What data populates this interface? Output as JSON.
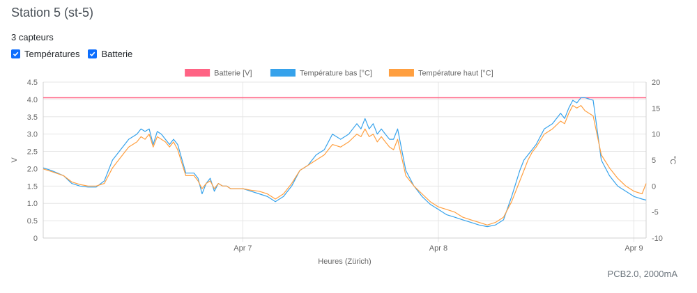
{
  "header": {
    "title": "Station 5 (st-5)",
    "subtitle": "3 capteurs"
  },
  "filters": [
    {
      "label": "Températures",
      "checked": true
    },
    {
      "label": "Batterie",
      "checked": true
    }
  ],
  "footnote": "PCB2.0, 2000mA",
  "colors": {
    "battery": "#ff6384",
    "temp_low": "#36a2eb",
    "temp_high": "#ff9f40",
    "grid": "#e6e6e6"
  },
  "chart_data": {
    "type": "line",
    "xlabel": "Heures (Zürich)",
    "ylabel_left": "V",
    "ylabel_right": "°C",
    "x_ticks": [
      "Apr 7",
      "Apr 8",
      "Apr 9"
    ],
    "y_left": {
      "min": 0,
      "max": 4.5,
      "ticks": [
        0,
        0.5,
        1.0,
        1.5,
        2.0,
        2.5,
        3.0,
        3.5,
        4.0,
        4.5
      ]
    },
    "y_right": {
      "min": -10,
      "max": 20,
      "ticks": [
        -10,
        -5,
        0,
        5,
        10,
        15,
        20
      ]
    },
    "legend_position": "top",
    "grid": true,
    "x_hours_range": [
      -24.5,
      49.5
    ],
    "series": [
      {
        "name": "Batterie [V]",
        "axis": "left",
        "color_key": "battery",
        "x": [
          -24.5,
          49.5
        ],
        "y": [
          4.05,
          4.05
        ]
      },
      {
        "name": "Température bas [°C]",
        "axis": "right",
        "color_key": "temp_low",
        "x": [
          -24.5,
          -23.5,
          -22.0,
          -21.0,
          -20.0,
          -19.0,
          -18.0,
          -17.0,
          -16.0,
          -15.0,
          -14.0,
          -13.0,
          -12.5,
          -12.0,
          -11.5,
          -11.0,
          -10.5,
          -10.0,
          -9.5,
          -9.0,
          -8.5,
          -8.0,
          -7.0,
          -6.0,
          -5.5,
          -5.0,
          -4.5,
          -4.0,
          -3.5,
          -3.0,
          -2.5,
          -2.0,
          -1.5,
          -1.0,
          0.0,
          1.0,
          2.0,
          3.0,
          4.0,
          5.0,
          6.0,
          7.0,
          8.0,
          9.0,
          10.0,
          11.0,
          12.0,
          13.0,
          14.0,
          14.5,
          15.0,
          15.5,
          16.0,
          16.5,
          17.0,
          17.5,
          18.0,
          18.5,
          19.0,
          20.0,
          21.0,
          22.0,
          23.0,
          24.0,
          25.0,
          26.0,
          27.0,
          28.0,
          29.0,
          30.0,
          31.0,
          32.0,
          33.0,
          34.0,
          34.5,
          35.0,
          35.5,
          36.0,
          37.0,
          38.0,
          39.0,
          39.5,
          40.0,
          40.5,
          41.0,
          41.5,
          42.0,
          43.0,
          44.0,
          45.0,
          46.0,
          47.0,
          48.0,
          49.0,
          49.5
        ],
        "y": [
          3.5,
          3.0,
          2.0,
          0.5,
          0.0,
          -0.2,
          -0.2,
          1.0,
          5.0,
          7.0,
          9.0,
          10.0,
          11.0,
          10.5,
          11.0,
          8.0,
          10.5,
          10.0,
          9.0,
          8.0,
          9.0,
          8.0,
          2.5,
          2.5,
          1.5,
          -1.5,
          0.5,
          1.5,
          -1.0,
          0.5,
          0.0,
          0.0,
          -0.5,
          -0.5,
          -0.5,
          -1.0,
          -1.5,
          -2.0,
          -3.0,
          -2.0,
          0.0,
          3.0,
          4.0,
          6.0,
          7.0,
          10.0,
          9.0,
          10.0,
          12.0,
          11.0,
          13.0,
          11.0,
          12.0,
          10.0,
          11.0,
          10.0,
          9.0,
          9.0,
          11.0,
          3.0,
          0.0,
          -2.0,
          -3.5,
          -4.5,
          -5.5,
          -6.0,
          -6.5,
          -7.0,
          -7.5,
          -7.8,
          -7.5,
          -6.5,
          -2.0,
          3.0,
          5.0,
          6.0,
          7.0,
          8.0,
          11.0,
          12.0,
          14.0,
          13.0,
          15.0,
          16.5,
          16.0,
          17.0,
          17.0,
          16.5,
          5.0,
          2.0,
          0.0,
          -1.0,
          -2.0,
          -2.5,
          -2.7
        ]
      },
      {
        "name": "Température haut [°C]",
        "axis": "right",
        "color_key": "temp_high",
        "x": [
          -24.5,
          -23.5,
          -22.0,
          -21.0,
          -20.0,
          -19.0,
          -18.0,
          -17.0,
          -16.0,
          -15.0,
          -14.0,
          -13.0,
          -12.5,
          -12.0,
          -11.5,
          -11.0,
          -10.5,
          -10.0,
          -9.5,
          -9.0,
          -8.5,
          -8.0,
          -7.0,
          -6.0,
          -5.5,
          -5.0,
          -4.5,
          -4.0,
          -3.5,
          -3.0,
          -2.5,
          -2.0,
          -1.5,
          -1.0,
          0.0,
          1.0,
          2.0,
          3.0,
          4.0,
          5.0,
          6.0,
          7.0,
          8.0,
          9.0,
          10.0,
          11.0,
          12.0,
          13.0,
          14.0,
          14.5,
          15.0,
          15.5,
          16.0,
          16.5,
          17.0,
          17.5,
          18.0,
          18.5,
          19.0,
          20.0,
          21.0,
          22.0,
          23.0,
          24.0,
          25.0,
          26.0,
          27.0,
          28.0,
          29.0,
          30.0,
          31.0,
          32.0,
          33.0,
          34.0,
          34.5,
          35.0,
          35.5,
          36.0,
          37.0,
          38.0,
          39.0,
          39.5,
          40.0,
          40.5,
          41.0,
          41.5,
          42.0,
          43.0,
          44.0,
          45.0,
          46.0,
          47.0,
          48.0,
          49.0,
          49.5
        ],
        "y": [
          3.3,
          2.8,
          2.0,
          0.8,
          0.3,
          0.0,
          0.0,
          0.5,
          3.5,
          5.5,
          7.5,
          8.5,
          9.5,
          9.0,
          10.0,
          7.5,
          9.5,
          9.0,
          8.5,
          7.5,
          8.5,
          7.0,
          2.0,
          2.0,
          1.0,
          -0.5,
          0.5,
          1.0,
          -0.5,
          0.5,
          0.0,
          0.0,
          -0.5,
          -0.5,
          -0.5,
          -0.8,
          -1.0,
          -1.5,
          -2.5,
          -1.5,
          0.5,
          3.0,
          4.0,
          5.0,
          6.0,
          8.0,
          7.5,
          8.5,
          10.0,
          9.5,
          11.0,
          9.5,
          10.0,
          8.5,
          9.5,
          8.5,
          7.5,
          7.0,
          9.0,
          2.0,
          0.0,
          -1.5,
          -3.0,
          -4.0,
          -4.5,
          -5.0,
          -6.0,
          -6.5,
          -7.0,
          -7.5,
          -7.0,
          -6.0,
          -3.0,
          1.0,
          3.0,
          5.0,
          6.5,
          7.5,
          10.0,
          11.0,
          12.5,
          12.0,
          14.0,
          15.5,
          15.0,
          15.5,
          14.5,
          13.5,
          6.0,
          3.5,
          1.5,
          0.0,
          -1.0,
          -1.5,
          0.5
        ]
      }
    ]
  }
}
